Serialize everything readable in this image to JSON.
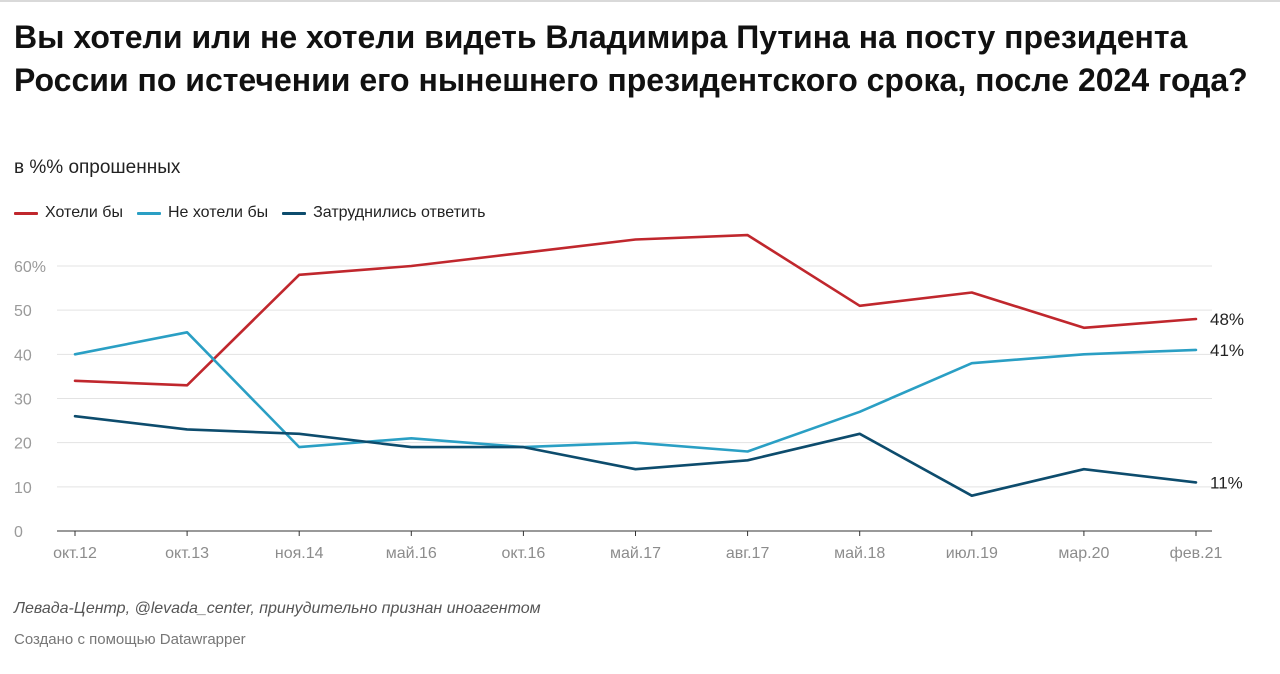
{
  "header": {
    "title": "Вы хотели или не хотели видеть Владимира Путина на посту президента России по истечении его нынешнего президентского срока, после 2024 года?",
    "subtitle": "в %% опрошенных"
  },
  "footer": {
    "notes": "Левада-Центр, @levada_center, принудительно признан иноагентом",
    "credit": "Создано с помощью Datawrapper"
  },
  "chart_data": {
    "type": "line",
    "title": "Вы хотели или не хотели видеть Владимира Путина на посту президента России по истечении его нынешнего президентского срока, после 2024 года?",
    "subtitle": "в %% опрошенных",
    "categories": [
      "окт.12",
      "окт.13",
      "ноя.14",
      "май.16",
      "окт.16",
      "май.17",
      "авг.17",
      "май.18",
      "июл.19",
      "мар.20",
      "фев.21"
    ],
    "x_dates": [
      "2012-10",
      "2013-10",
      "2014-11",
      "2016-05",
      "2016-10",
      "2017-05",
      "2017-08",
      "2018-05",
      "2019-07",
      "2020-03",
      "2021-02"
    ],
    "ylim": [
      0,
      60
    ],
    "yticks": [
      0,
      10,
      20,
      30,
      40,
      50,
      60
    ],
    "ytick_labels": [
      "0",
      "10",
      "20",
      "30",
      "40",
      "50",
      "60%"
    ],
    "grid": true,
    "legend_position": "top-left",
    "series": [
      {
        "name": "Хотели бы",
        "color": "#c0272d",
        "values": [
          34,
          33,
          58,
          60,
          63,
          66,
          67,
          51,
          54,
          46,
          48
        ],
        "end_label": "48%"
      },
      {
        "name": "Не хотели бы",
        "color": "#2a9fc4",
        "values": [
          40,
          45,
          19,
          21,
          19,
          20,
          18,
          27,
          38,
          40,
          41
        ],
        "end_label": "41%"
      },
      {
        "name": "Затруднились ответить",
        "color": "#0d4c6d",
        "values": [
          26,
          23,
          22,
          19,
          19,
          14,
          16,
          22,
          8,
          14,
          11
        ],
        "end_label": "11%"
      }
    ]
  }
}
